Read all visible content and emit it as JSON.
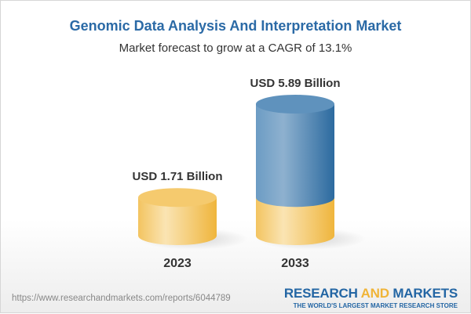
{
  "title": "Genomic Data Analysis And Interpretation Market",
  "subtitle": "Market forecast to grow at a CAGR of 13.1%",
  "chart_data": {
    "type": "bar",
    "style": "3d-cylinder",
    "categories": [
      "2023",
      "2033"
    ],
    "values": [
      1.71,
      5.89
    ],
    "data_labels": [
      "USD 1.71 Billion",
      "USD 5.89 Billion"
    ],
    "unit": "USD Billion",
    "colors": {
      "base": "#f3c45e",
      "growth": "#3f7db3"
    }
  },
  "footer": {
    "url": "https://www.researchandmarkets.com/reports/6044789",
    "logo_part1": "RESEARCH ",
    "logo_part2": "AND",
    "logo_part3": " MARKETS",
    "tagline": "THE WORLD'S LARGEST MARKET RESEARCH STORE"
  }
}
